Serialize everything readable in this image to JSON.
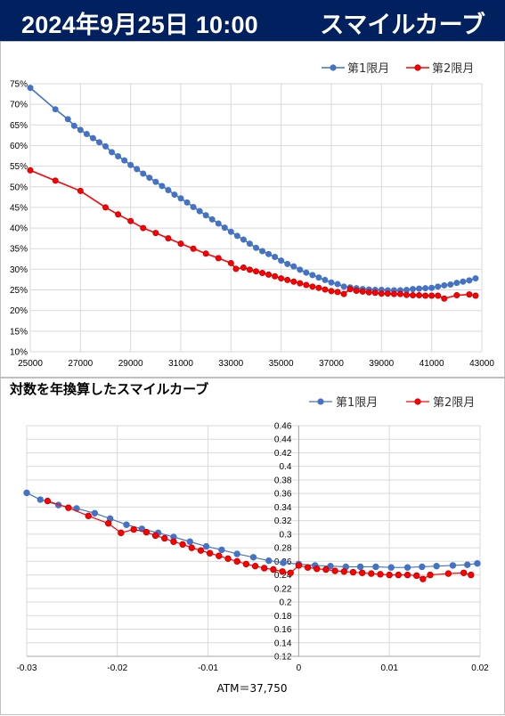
{
  "header": {
    "date": "2024年9月25日 10:00",
    "title": "スマイルカーブ"
  },
  "colors": {
    "header_bg": "#002060",
    "series1": "#4472C4",
    "series2": "#FF0000",
    "series2_edge": "#C00000",
    "grid": "#D9D9D9",
    "frame": "#BFBFBF"
  },
  "chart_data": [
    {
      "type": "line",
      "title": "",
      "legend_position": "top-right",
      "grid": true,
      "xlim": [
        25000,
        43000
      ],
      "ylim": [
        0.1,
        0.75
      ],
      "x_ticks": [
        "25000",
        "27000",
        "29000",
        "31000",
        "33000",
        "35000",
        "37000",
        "39000",
        "41000",
        "43000"
      ],
      "y_ticks": [
        "10%",
        "15%",
        "20%",
        "25%",
        "30%",
        "35%",
        "40%",
        "45%",
        "50%",
        "55%",
        "60%",
        "65%",
        "70%",
        "75%"
      ],
      "series": [
        {
          "name": "第1限月",
          "x": [
            25000,
            26000,
            26500,
            26750,
            27000,
            27250,
            27500,
            27750,
            28000,
            28250,
            28500,
            28750,
            29000,
            29250,
            29500,
            29750,
            30000,
            30250,
            30500,
            30750,
            31000,
            31250,
            31500,
            31750,
            32000,
            32250,
            32500,
            32750,
            33000,
            33250,
            33500,
            33750,
            34000,
            34250,
            34500,
            34750,
            35000,
            35250,
            35500,
            35750,
            36000,
            36250,
            36500,
            36750,
            37000,
            37250,
            37500,
            37750,
            38000,
            38250,
            38500,
            38750,
            39000,
            39250,
            39500,
            39750,
            40000,
            40250,
            40500,
            40750,
            41000,
            41250,
            41500,
            41750,
            42000,
            42250,
            42500,
            42750
          ],
          "y": [
            0.74,
            0.688,
            0.664,
            0.648,
            0.638,
            0.628,
            0.618,
            0.608,
            0.598,
            0.584,
            0.574,
            0.564,
            0.553,
            0.543,
            0.532,
            0.522,
            0.512,
            0.502,
            0.492,
            0.481,
            0.472,
            0.462,
            0.451,
            0.441,
            0.431,
            0.421,
            0.411,
            0.401,
            0.391,
            0.381,
            0.372,
            0.362,
            0.352,
            0.344,
            0.337,
            0.33,
            0.321,
            0.313,
            0.307,
            0.299,
            0.292,
            0.286,
            0.28,
            0.274,
            0.268,
            0.264,
            0.258,
            0.256,
            0.254,
            0.252,
            0.251,
            0.25,
            0.25,
            0.249,
            0.249,
            0.249,
            0.25,
            0.252,
            0.253,
            0.254,
            0.255,
            0.258,
            0.261,
            0.263,
            0.267,
            0.27,
            0.273,
            0.278
          ]
        },
        {
          "name": "第2限月",
          "x": [
            25000,
            26000,
            27000,
            28000,
            28500,
            29000,
            29500,
            30000,
            30500,
            31000,
            31500,
            32000,
            32500,
            33000,
            33200,
            33500,
            33750,
            34000,
            34250,
            34500,
            34750,
            35000,
            35250,
            35500,
            35750,
            36000,
            36250,
            36500,
            36750,
            37000,
            37250,
            37500,
            37750,
            38000,
            38250,
            38500,
            38750,
            39000,
            39250,
            39500,
            39750,
            40000,
            40250,
            40500,
            40750,
            41000,
            41250,
            41500,
            42000,
            42500,
            42750
          ],
          "y": [
            0.54,
            0.515,
            0.49,
            0.45,
            0.433,
            0.417,
            0.4,
            0.388,
            0.375,
            0.362,
            0.35,
            0.338,
            0.327,
            0.315,
            0.301,
            0.304,
            0.299,
            0.295,
            0.291,
            0.287,
            0.283,
            0.278,
            0.274,
            0.27,
            0.266,
            0.262,
            0.258,
            0.255,
            0.251,
            0.247,
            0.245,
            0.24,
            0.252,
            0.248,
            0.246,
            0.244,
            0.243,
            0.241,
            0.241,
            0.24,
            0.24,
            0.238,
            0.237,
            0.237,
            0.236,
            0.236,
            0.236,
            0.229,
            0.237,
            0.239,
            0.236
          ]
        }
      ]
    },
    {
      "type": "line",
      "title": "対数を年換算したスマイルカーブ",
      "legend_position": "top-right",
      "grid": true,
      "xlim": [
        -0.03,
        0.02
      ],
      "ylim": [
        0.12,
        0.46
      ],
      "x_ticks": [
        "-0.03",
        "-0.02",
        "-0.01",
        "0",
        "0.01",
        "0.02"
      ],
      "y_ticks": [
        "0.12",
        "0.14",
        "0.16",
        "0.18",
        "0.2",
        "0.22",
        "0.24",
        "0.26",
        "0.28",
        "0.3",
        "0.32",
        "0.34",
        "0.36",
        "0.38",
        "0.4",
        "0.42",
        "0.44",
        "0.46"
      ],
      "annotation": "ATM＝37,750",
      "series": [
        {
          "name": "第1限月",
          "x": [
            -0.03,
            -0.0285,
            -0.0265,
            -0.0245,
            -0.0225,
            -0.0208,
            -0.019,
            -0.0173,
            -0.0155,
            -0.0138,
            -0.012,
            -0.0102,
            -0.0085,
            -0.0068,
            -0.005,
            -0.0033,
            -0.0017,
            0.0,
            0.0018,
            0.0035,
            0.0052,
            0.0068,
            0.0085,
            0.0102,
            0.012,
            0.0136,
            0.0152,
            0.017,
            0.0186,
            0.0197
          ],
          "y": [
            0.361,
            0.351,
            0.343,
            0.338,
            0.331,
            0.323,
            0.314,
            0.308,
            0.302,
            0.296,
            0.289,
            0.282,
            0.277,
            0.271,
            0.266,
            0.261,
            0.258,
            0.256,
            0.254,
            0.253,
            0.252,
            0.252,
            0.252,
            0.251,
            0.251,
            0.252,
            0.253,
            0.254,
            0.255,
            0.257
          ]
        },
        {
          "name": "第2限月",
          "x": [
            -0.0277,
            -0.0254,
            -0.0232,
            -0.021,
            -0.0196,
            -0.0182,
            -0.0168,
            -0.0158,
            -0.0148,
            -0.0138,
            -0.0128,
            -0.0118,
            -0.0108,
            -0.0098,
            -0.0088,
            -0.0078,
            -0.0068,
            -0.0058,
            -0.0048,
            -0.0038,
            -0.0028,
            -0.0018,
            -0.0009,
            0.0,
            0.001,
            0.002,
            0.003,
            0.004,
            0.005,
            0.006,
            0.007,
            0.008,
            0.009,
            0.01,
            0.011,
            0.012,
            0.013,
            0.0137,
            0.0145,
            0.0165,
            0.0182,
            0.019
          ],
          "y": [
            0.349,
            0.339,
            0.327,
            0.316,
            0.302,
            0.307,
            0.303,
            0.298,
            0.294,
            0.289,
            0.285,
            0.28,
            0.276,
            0.272,
            0.268,
            0.264,
            0.26,
            0.256,
            0.253,
            0.25,
            0.248,
            0.245,
            0.243,
            0.254,
            0.251,
            0.249,
            0.248,
            0.246,
            0.245,
            0.244,
            0.243,
            0.242,
            0.241,
            0.24,
            0.24,
            0.24,
            0.239,
            0.234,
            0.24,
            0.242,
            0.243,
            0.24
          ]
        }
      ]
    }
  ]
}
